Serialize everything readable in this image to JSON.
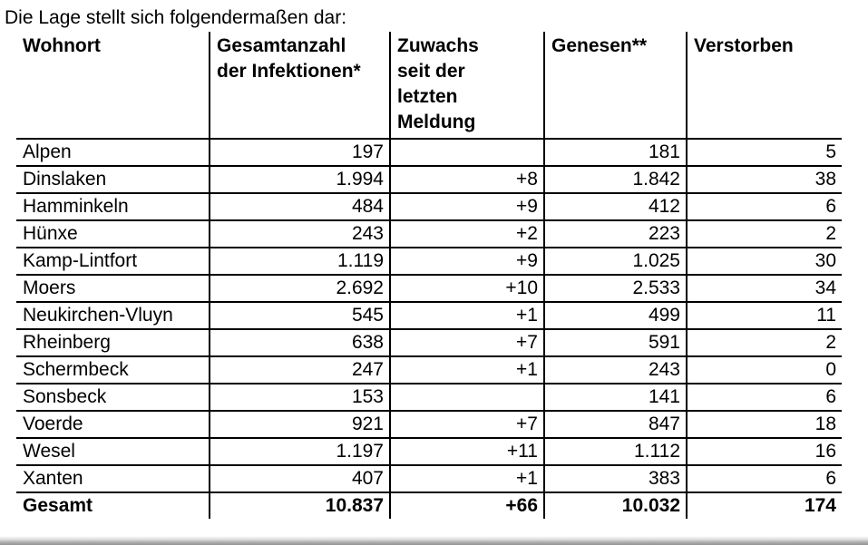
{
  "page": {
    "intro_text": "Die Lage stellt sich folgendermaßen dar:"
  },
  "table": {
    "columns": [
      "Wohnort",
      "Gesamtanzahl\nder Infektionen*",
      "Zuwachs\nseit der\nletzten\nMeldung",
      "Genesen**",
      "Verstorben"
    ],
    "rows": [
      {
        "wohnort": "Alpen",
        "gesamtanzahl": "197",
        "zuwachs": "",
        "genesen": "181",
        "verstorben": "5"
      },
      {
        "wohnort": "Dinslaken",
        "gesamtanzahl": "1.994",
        "zuwachs": "+8",
        "genesen": "1.842",
        "verstorben": "38"
      },
      {
        "wohnort": "Hamminkeln",
        "gesamtanzahl": "484",
        "zuwachs": "+9",
        "genesen": "412",
        "verstorben": "6"
      },
      {
        "wohnort": "Hünxe",
        "gesamtanzahl": "243",
        "zuwachs": "+2",
        "genesen": "223",
        "verstorben": "2"
      },
      {
        "wohnort": "Kamp-Lintfort",
        "gesamtanzahl": "1.119",
        "zuwachs": "+9",
        "genesen": "1.025",
        "verstorben": "30"
      },
      {
        "wohnort": "Moers",
        "gesamtanzahl": "2.692",
        "zuwachs": "+10",
        "genesen": "2.533",
        "verstorben": "34"
      },
      {
        "wohnort": "Neukirchen-Vluyn",
        "gesamtanzahl": "545",
        "zuwachs": "+1",
        "genesen": "499",
        "verstorben": "11"
      },
      {
        "wohnort": "Rheinberg",
        "gesamtanzahl": "638",
        "zuwachs": "+7",
        "genesen": "591",
        "verstorben": "2"
      },
      {
        "wohnort": "Schermbeck",
        "gesamtanzahl": "247",
        "zuwachs": "+1",
        "genesen": "243",
        "verstorben": "0"
      },
      {
        "wohnort": "Sonsbeck",
        "gesamtanzahl": "153",
        "zuwachs": "",
        "genesen": "141",
        "verstorben": "6"
      },
      {
        "wohnort": "Voerde",
        "gesamtanzahl": "921",
        "zuwachs": "+7",
        "genesen": "847",
        "verstorben": "18"
      },
      {
        "wohnort": "Wesel",
        "gesamtanzahl": "1.197",
        "zuwachs": "+11",
        "genesen": "1.112",
        "verstorben": "16"
      },
      {
        "wohnort": "Xanten",
        "gesamtanzahl": "407",
        "zuwachs": "+1",
        "genesen": "383",
        "verstorben": "6"
      }
    ],
    "total_row": {
      "wohnort": "Gesamt",
      "gesamtanzahl": "10.837",
      "zuwachs": "+66",
      "genesen": "10.032",
      "verstorben": "174"
    }
  }
}
